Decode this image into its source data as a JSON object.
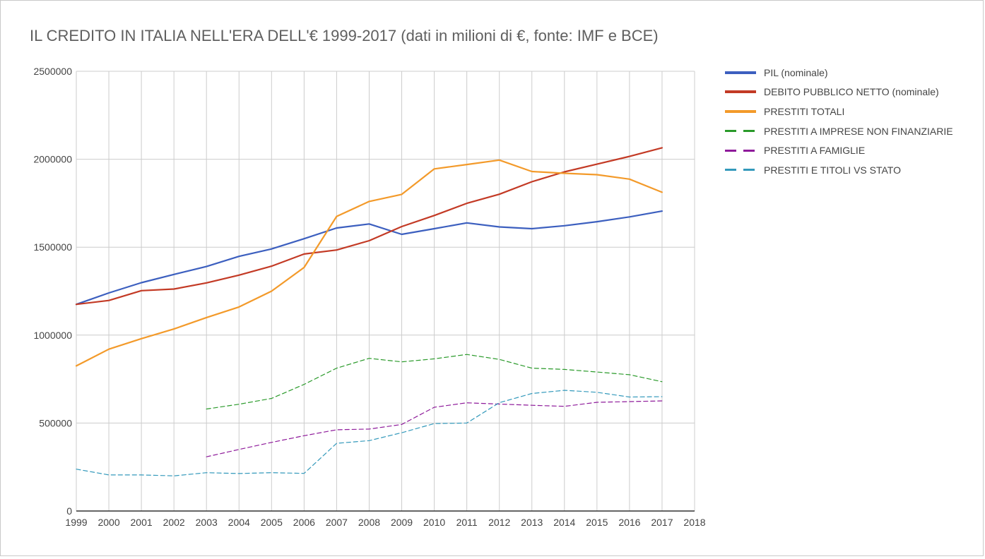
{
  "chart_data": {
    "type": "line",
    "title": "IL CREDITO IN ITALIA NELL'ERA DELL'€ 1999-2017 (dati in milioni di €, fonte: IMF e BCE)",
    "xlabel": "",
    "ylabel": "",
    "xlim": [
      1999,
      2018
    ],
    "ylim": [
      0,
      2500000
    ],
    "x_ticks": [
      "1999",
      "2000",
      "2001",
      "2002",
      "2003",
      "2004",
      "2005",
      "2006",
      "2007",
      "2008",
      "2009",
      "2010",
      "2011",
      "2012",
      "2013",
      "2014",
      "2015",
      "2016",
      "2017",
      "2018"
    ],
    "y_ticks": [
      "0",
      "500000",
      "1000000",
      "1500000",
      "2000000",
      "2500000"
    ],
    "grid": true,
    "legend": "right",
    "series": [
      {
        "name": "PIL (nominale)",
        "color": "#3c5fbf",
        "style": "solid",
        "x": [
          1999,
          2000,
          2001,
          2002,
          2003,
          2004,
          2005,
          2006,
          2007,
          2008,
          2009,
          2010,
          2011,
          2012,
          2013,
          2014,
          2015,
          2016,
          2017
        ],
        "values": [
          1175000,
          1240000,
          1298000,
          1345000,
          1390000,
          1448000,
          1490000,
          1548000,
          1609000,
          1632000,
          1573000,
          1605000,
          1638000,
          1615000,
          1605000,
          1622000,
          1645000,
          1672000,
          1705000
        ]
      },
      {
        "name": "DEBITO PUBBLICO NETTO (nominale)",
        "color": "#c33a25",
        "style": "solid",
        "x": [
          1999,
          2000,
          2001,
          2002,
          2003,
          2004,
          2005,
          2006,
          2007,
          2008,
          2009,
          2010,
          2011,
          2012,
          2013,
          2014,
          2015,
          2016,
          2017
        ],
        "values": [
          1175000,
          1197000,
          1253000,
          1262000,
          1297000,
          1341000,
          1392000,
          1461000,
          1484000,
          1537000,
          1617000,
          1680000,
          1749000,
          1801000,
          1872000,
          1928000,
          1972000,
          2016000,
          2065000
        ]
      },
      {
        "name": "PRESTITI TOTALI",
        "color": "#f39a2a",
        "style": "solid",
        "x": [
          1999,
          2000,
          2001,
          2002,
          2003,
          2004,
          2005,
          2006,
          2007,
          2008,
          2009,
          2010,
          2011,
          2012,
          2013,
          2014,
          2015,
          2016,
          2017
        ],
        "values": [
          825000,
          920000,
          980000,
          1035000,
          1100000,
          1160000,
          1250000,
          1385000,
          1675000,
          1760000,
          1800000,
          1945000,
          1970000,
          1995000,
          1930000,
          1920000,
          1912000,
          1887000,
          1812000
        ]
      },
      {
        "name": "PRESTITI A IMPRESE NON FINANZIARIE",
        "color": "#2a9a2a",
        "style": "dashed",
        "x": [
          2003,
          2004,
          2005,
          2006,
          2007,
          2008,
          2009,
          2010,
          2011,
          2012,
          2013,
          2014,
          2015,
          2016,
          2017
        ],
        "values": [
          580000,
          607000,
          640000,
          720000,
          812000,
          868000,
          848000,
          865000,
          890000,
          862000,
          812000,
          805000,
          790000,
          775000,
          735000
        ]
      },
      {
        "name": "PRESTITI A FAMIGLIE",
        "color": "#8e1a9a",
        "style": "dashed",
        "x": [
          2003,
          2004,
          2005,
          2006,
          2007,
          2008,
          2009,
          2010,
          2011,
          2012,
          2013,
          2014,
          2015,
          2016,
          2017
        ],
        "values": [
          308000,
          350000,
          390000,
          428000,
          462000,
          466000,
          492000,
          590000,
          615000,
          608000,
          601000,
          595000,
          618000,
          622000,
          626000
        ]
      },
      {
        "name": "PRESTITI E TITOLI VS STATO",
        "color": "#3399bb",
        "style": "dashed",
        "x": [
          1999,
          2000,
          2001,
          2002,
          2003,
          2004,
          2005,
          2006,
          2007,
          2008,
          2009,
          2010,
          2011,
          2012,
          2013,
          2014,
          2015,
          2016,
          2017
        ],
        "values": [
          238000,
          205000,
          205000,
          200000,
          218000,
          213000,
          218000,
          214000,
          385000,
          400000,
          445000,
          497000,
          500000,
          616000,
          668000,
          686000,
          675000,
          648000,
          650000
        ]
      }
    ]
  }
}
